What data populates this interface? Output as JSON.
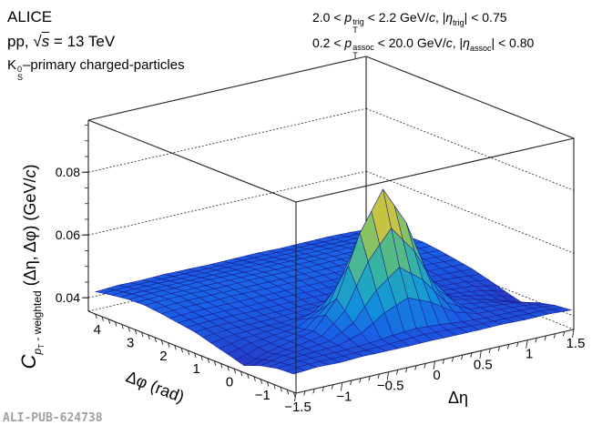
{
  "header": {
    "experiment": "ALICE",
    "system_prefix": "pp, ",
    "sqrt_symbol": "√",
    "sqrt_var": "s",
    "energy": " = 13 TeV",
    "particle_main": "K",
    "particle_sup": "0",
    "particle_sub": "S",
    "particle_rest": "–primary charged-particles"
  },
  "cuts": {
    "line1": {
      "pre": "2.0 < ",
      "var": "p",
      "sup": "trig",
      "sub": "T",
      "mid": " < 2.2 GeV/",
      "c": "c",
      "sep": ",  |",
      "eta": "η",
      "eta_sub": "trig",
      "post": "| < 0.75"
    },
    "line2": {
      "pre": "0.2 < ",
      "var": "p",
      "sup": "assoc",
      "sub": "T",
      "mid": " < 20.0 GeV/",
      "c": "c",
      "sep": ",  |",
      "eta": "η",
      "eta_sub": "assoc",
      "post": "| < 0.80"
    }
  },
  "watermark": "ALI-PUB-624738",
  "chart_data": {
    "type": "surface",
    "title": "",
    "xlabel": "Δη",
    "ylabel": "Δφ (rad)",
    "zlabel": {
      "main": "C",
      "sub_var": "p",
      "sub_sub": "T",
      "sub_rest": " - weighted",
      "rest": " (Δη, Δφ) (GeV/",
      "unit_c": "c",
      "close": ")"
    },
    "xlim": [
      -1.5,
      1.5
    ],
    "ylim": [
      -1.5708,
      4.7124
    ],
    "zlim": [
      0.0357,
      0.0966
    ],
    "x_ticks": [
      "−1.5",
      "−1",
      "−0.5",
      "0",
      "0.5",
      "1",
      "1.5"
    ],
    "x_tick_values": [
      -1.5,
      -1,
      -0.5,
      0,
      0.5,
      1,
      1.5
    ],
    "y_ticks": [
      "−1",
      "0",
      "1",
      "2",
      "3",
      "4"
    ],
    "y_tick_values": [
      -1,
      0,
      1,
      2,
      3,
      4
    ],
    "z_ticks": [
      "0.04",
      "0.06",
      "0.08"
    ],
    "z_tick_values": [
      0.04,
      0.06,
      0.08
    ],
    "grid": true,
    "eta": [
      -1.5,
      -1.25,
      -1.0,
      -0.75,
      -0.5,
      -0.25,
      0,
      0.25,
      0.5,
      0.75,
      1.0,
      1.25,
      1.5
    ],
    "phi": [
      -1.5,
      -1.0,
      -0.5,
      0,
      0.5,
      1.0,
      1.5,
      2.0,
      2.5,
      3.0,
      3.5,
      4.0,
      4.5
    ],
    "z": [
      [
        0.0415,
        0.042,
        0.0418,
        0.0421,
        0.042,
        0.042,
        0.0421,
        0.042,
        0.042,
        0.0421,
        0.0419,
        0.042,
        0.0416
      ],
      [
        0.0412,
        0.0419,
        0.042,
        0.0421,
        0.0425,
        0.0433,
        0.0438,
        0.0433,
        0.0425,
        0.0421,
        0.042,
        0.0418,
        0.041
      ],
      [
        0.04,
        0.0415,
        0.0421,
        0.0428,
        0.0468,
        0.0556,
        0.0612,
        0.0556,
        0.0468,
        0.0428,
        0.0421,
        0.0414,
        0.0398
      ],
      [
        0.038,
        0.0405,
        0.0422,
        0.0438,
        0.0525,
        0.0717,
        0.084,
        0.0717,
        0.0525,
        0.0438,
        0.0422,
        0.0402,
        0.0378
      ],
      [
        0.0395,
        0.0414,
        0.0422,
        0.0429,
        0.0469,
        0.0557,
        0.0613,
        0.0557,
        0.0469,
        0.0429,
        0.0422,
        0.0412,
        0.0392
      ],
      [
        0.041,
        0.042,
        0.0423,
        0.0424,
        0.0428,
        0.0436,
        0.0441,
        0.0436,
        0.0428,
        0.0424,
        0.0423,
        0.0419,
        0.0408
      ],
      [
        0.0425,
        0.0428,
        0.0427,
        0.0428,
        0.0429,
        0.0428,
        0.0428,
        0.0429,
        0.0428,
        0.0427,
        0.0428,
        0.0426,
        0.0422
      ],
      [
        0.0433,
        0.0436,
        0.0437,
        0.0435,
        0.0436,
        0.0437,
        0.0436,
        0.0435,
        0.0436,
        0.0437,
        0.0436,
        0.0435,
        0.0431
      ],
      [
        0.0441,
        0.0445,
        0.0444,
        0.0446,
        0.0445,
        0.0444,
        0.0445,
        0.0446,
        0.0444,
        0.0445,
        0.0446,
        0.0443,
        0.044
      ],
      [
        0.0447,
        0.045,
        0.0451,
        0.0449,
        0.045,
        0.0451,
        0.045,
        0.0449,
        0.0451,
        0.045,
        0.0449,
        0.045,
        0.0446
      ],
      [
        0.0445,
        0.0448,
        0.0447,
        0.0449,
        0.0448,
        0.0447,
        0.0448,
        0.0449,
        0.0447,
        0.0448,
        0.0449,
        0.0447,
        0.0444
      ],
      [
        0.0438,
        0.0441,
        0.0442,
        0.044,
        0.0441,
        0.0442,
        0.0441,
        0.044,
        0.0442,
        0.0441,
        0.044,
        0.0441,
        0.0437
      ],
      [
        0.0428,
        0.0432,
        0.0431,
        0.0433,
        0.0432,
        0.0431,
        0.0432,
        0.0433,
        0.0431,
        0.0432,
        0.0433,
        0.0431,
        0.0427
      ]
    ],
    "colors": {
      "palette": [
        "#2a2ab8",
        "#1a5ee6",
        "#1296d8",
        "#2ab0b0",
        "#70c070",
        "#c8c440",
        "#f8f018"
      ],
      "mesh": "#1c1c8c",
      "frame": "#000000"
    }
  }
}
